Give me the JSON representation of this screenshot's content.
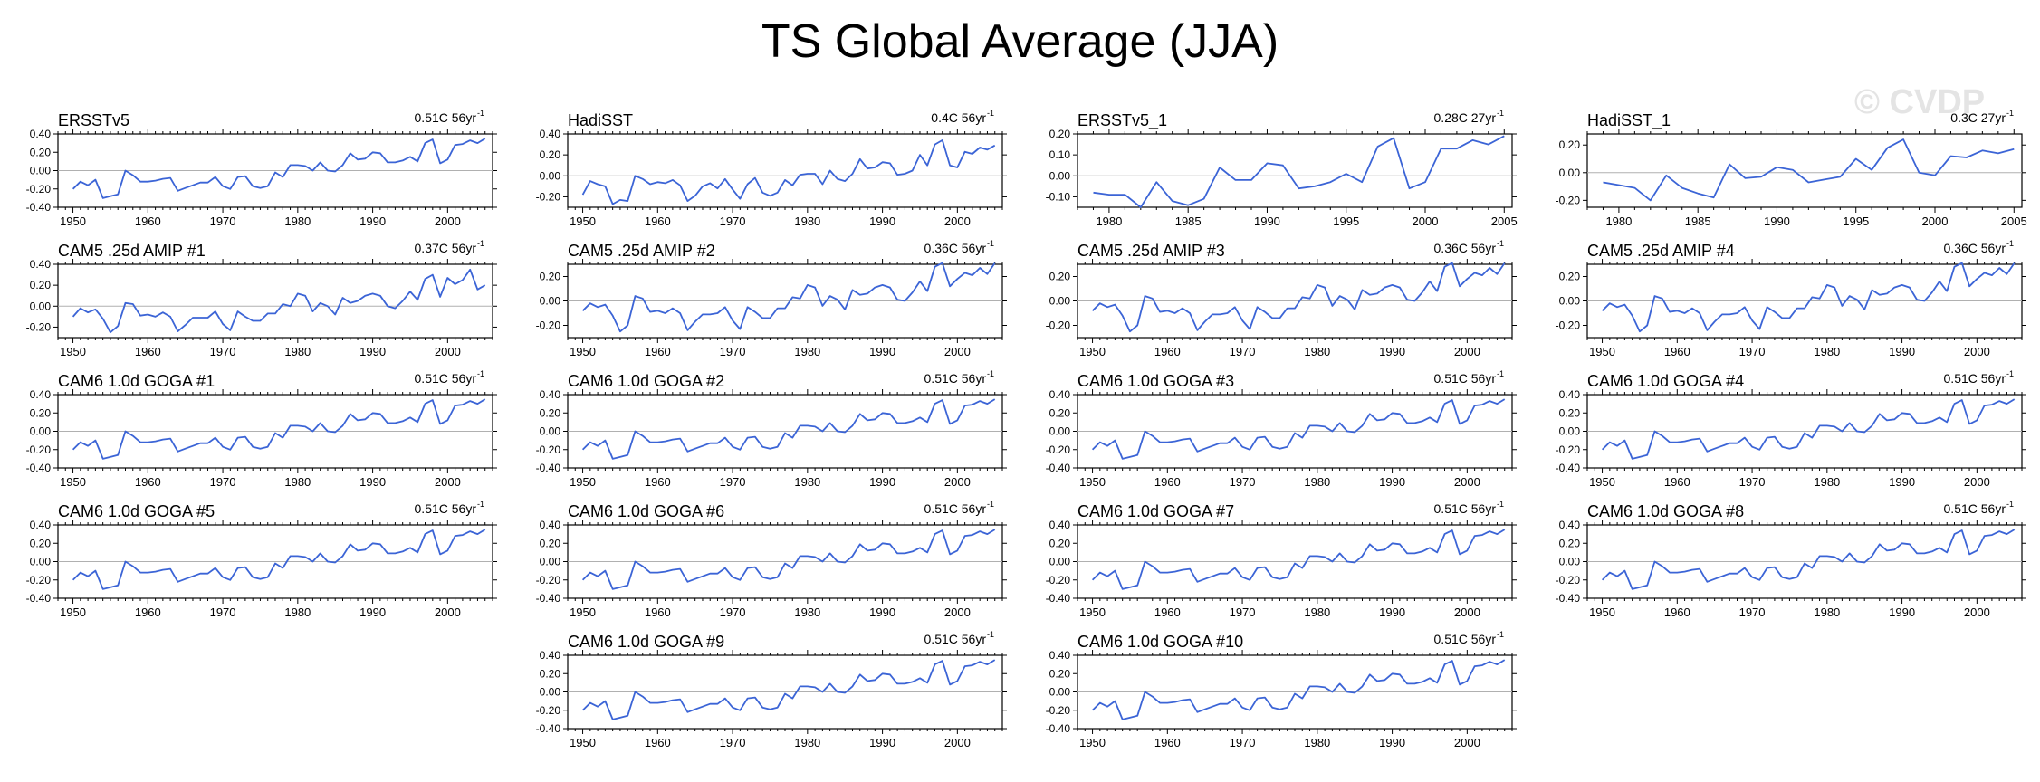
{
  "page_title": "TS Global Average (JJA)",
  "watermark": "© CVDP",
  "line_color": "#3b64d6",
  "zero_line_color": "#b0b0b0",
  "chart_data": [
    {
      "type": "line",
      "title": "ERSSTv5",
      "trend": "0.51C 56yr",
      "trend_sup": "-1",
      "xlim": [
        1948,
        2006
      ],
      "ylim": [
        -0.4,
        0.4
      ],
      "yticks": [
        "0.40",
        "0.20",
        "0.00",
        "-0.20",
        "-0.40"
      ],
      "xticks": [
        1950,
        1960,
        1970,
        1980,
        1990,
        2000
      ],
      "start": 1950,
      "series": "A"
    },
    {
      "type": "line",
      "title": "HadiSST",
      "trend": "0.4C 56yr",
      "trend_sup": "-1",
      "xlim": [
        1948,
        2006
      ],
      "ylim": [
        -0.3,
        0.4
      ],
      "yticks": [
        "0.40",
        "0.20",
        "0.00",
        "-0.20"
      ],
      "xticks": [
        1950,
        1960,
        1970,
        1980,
        1990,
        2000
      ],
      "start": 1950,
      "series": "B"
    },
    {
      "type": "line",
      "title": "ERSSTv5_1",
      "trend": "0.28C 27yr",
      "trend_sup": "-1",
      "xlim": [
        1978,
        2005.5
      ],
      "ylim": [
        -0.15,
        0.2
      ],
      "yticks": [
        "0.20",
        "0.10",
        "0.00",
        "-0.10"
      ],
      "xticks": [
        1980,
        1985,
        1990,
        1995,
        2000,
        2005
      ],
      "start": 1979,
      "series": "C"
    },
    {
      "type": "line",
      "title": "HadiSST_1",
      "trend": "0.3C 27yr",
      "trend_sup": "-1",
      "xlim": [
        1978,
        2005.5
      ],
      "ylim": [
        -0.25,
        0.28
      ],
      "yticks": [
        "0.20",
        "0.00",
        "-0.20"
      ],
      "xticks": [
        1980,
        1985,
        1990,
        1995,
        2000,
        2005
      ],
      "start": 1979,
      "series": "D"
    },
    {
      "type": "line",
      "title": "CAM5 .25d AMIP #1",
      "trend": "0.37C 56yr",
      "trend_sup": "-1",
      "xlim": [
        1948,
        2006
      ],
      "ylim": [
        -0.3,
        0.4
      ],
      "yticks": [
        "0.40",
        "0.20",
        "0.00",
        "-0.20"
      ],
      "xticks": [
        1950,
        1960,
        1970,
        1980,
        1990,
        2000
      ],
      "start": 1950,
      "series": "E"
    },
    {
      "type": "line",
      "title": "CAM5 .25d AMIP #2",
      "trend": "0.36C 56yr",
      "trend_sup": "-1",
      "xlim": [
        1948,
        2006
      ],
      "ylim": [
        -0.3,
        0.3
      ],
      "yticks": [
        "0.20",
        "0.00",
        "-0.20"
      ],
      "xticks": [
        1950,
        1960,
        1970,
        1980,
        1990,
        2000
      ],
      "start": 1950,
      "series": "F"
    },
    {
      "type": "line",
      "title": "CAM5 .25d AMIP #3",
      "trend": "0.36C 56yr",
      "trend_sup": "-1",
      "xlim": [
        1948,
        2006
      ],
      "ylim": [
        -0.3,
        0.3
      ],
      "yticks": [
        "0.20",
        "0.00",
        "-0.20"
      ],
      "xticks": [
        1950,
        1960,
        1970,
        1980,
        1990,
        2000
      ],
      "start": 1950,
      "series": "F"
    },
    {
      "type": "line",
      "title": "CAM5 .25d AMIP #4",
      "trend": "0.36C 56yr",
      "trend_sup": "-1",
      "xlim": [
        1948,
        2006
      ],
      "ylim": [
        -0.3,
        0.3
      ],
      "yticks": [
        "0.20",
        "0.00",
        "-0.20"
      ],
      "xticks": [
        1950,
        1960,
        1970,
        1980,
        1990,
        2000
      ],
      "start": 1950,
      "series": "F"
    },
    {
      "type": "line",
      "title": "CAM6 1.0d GOGA #1",
      "trend": "0.51C 56yr",
      "trend_sup": "-1",
      "xlim": [
        1948,
        2006
      ],
      "ylim": [
        -0.4,
        0.4
      ],
      "yticks": [
        "0.40",
        "0.20",
        "0.00",
        "-0.20",
        "-0.40"
      ],
      "xticks": [
        1950,
        1960,
        1970,
        1980,
        1990,
        2000
      ],
      "start": 1950,
      "series": "A"
    },
    {
      "type": "line",
      "title": "CAM6 1.0d GOGA #2",
      "trend": "0.51C 56yr",
      "trend_sup": "-1",
      "xlim": [
        1948,
        2006
      ],
      "ylim": [
        -0.4,
        0.4
      ],
      "yticks": [
        "0.40",
        "0.20",
        "0.00",
        "-0.20",
        "-0.40"
      ],
      "xticks": [
        1950,
        1960,
        1970,
        1980,
        1990,
        2000
      ],
      "start": 1950,
      "series": "A"
    },
    {
      "type": "line",
      "title": "CAM6 1.0d GOGA #3",
      "trend": "0.51C 56yr",
      "trend_sup": "-1",
      "xlim": [
        1948,
        2006
      ],
      "ylim": [
        -0.4,
        0.4
      ],
      "yticks": [
        "0.40",
        "0.20",
        "0.00",
        "-0.20",
        "-0.40"
      ],
      "xticks": [
        1950,
        1960,
        1970,
        1980,
        1990,
        2000
      ],
      "start": 1950,
      "series": "A"
    },
    {
      "type": "line",
      "title": "CAM6 1.0d GOGA #4",
      "trend": "0.51C 56yr",
      "trend_sup": "-1",
      "xlim": [
        1948,
        2006
      ],
      "ylim": [
        -0.4,
        0.4
      ],
      "yticks": [
        "0.40",
        "0.20",
        "0.00",
        "-0.20",
        "-0.40"
      ],
      "xticks": [
        1950,
        1960,
        1970,
        1980,
        1990,
        2000
      ],
      "start": 1950,
      "series": "A"
    },
    {
      "type": "line",
      "title": "CAM6 1.0d GOGA #5",
      "trend": "0.51C 56yr",
      "trend_sup": "-1",
      "xlim": [
        1948,
        2006
      ],
      "ylim": [
        -0.4,
        0.4
      ],
      "yticks": [
        "0.40",
        "0.20",
        "0.00",
        "-0.20",
        "-0.40"
      ],
      "xticks": [
        1950,
        1960,
        1970,
        1980,
        1990,
        2000
      ],
      "start": 1950,
      "series": "A"
    },
    {
      "type": "line",
      "title": "CAM6 1.0d GOGA #6",
      "trend": "0.51C 56yr",
      "trend_sup": "-1",
      "xlim": [
        1948,
        2006
      ],
      "ylim": [
        -0.4,
        0.4
      ],
      "yticks": [
        "0.40",
        "0.20",
        "0.00",
        "-0.20",
        "-0.40"
      ],
      "xticks": [
        1950,
        1960,
        1970,
        1980,
        1990,
        2000
      ],
      "start": 1950,
      "series": "A"
    },
    {
      "type": "line",
      "title": "CAM6 1.0d GOGA #7",
      "trend": "0.51C 56yr",
      "trend_sup": "-1",
      "xlim": [
        1948,
        2006
      ],
      "ylim": [
        -0.4,
        0.4
      ],
      "yticks": [
        "0.40",
        "0.20",
        "0.00",
        "-0.20",
        "-0.40"
      ],
      "xticks": [
        1950,
        1960,
        1970,
        1980,
        1990,
        2000
      ],
      "start": 1950,
      "series": "A"
    },
    {
      "type": "line",
      "title": "CAM6 1.0d GOGA #8",
      "trend": "0.51C 56yr",
      "trend_sup": "-1",
      "xlim": [
        1948,
        2006
      ],
      "ylim": [
        -0.4,
        0.4
      ],
      "yticks": [
        "0.40",
        "0.20",
        "0.00",
        "-0.20",
        "-0.40"
      ],
      "xticks": [
        1950,
        1960,
        1970,
        1980,
        1990,
        2000
      ],
      "start": 1950,
      "series": "A"
    },
    {
      "type": "line",
      "title": "CAM6 1.0d GOGA #9",
      "trend": "0.51C 56yr",
      "trend_sup": "-1",
      "xlim": [
        1948,
        2006
      ],
      "ylim": [
        -0.4,
        0.4
      ],
      "yticks": [
        "0.40",
        "0.20",
        "0.00",
        "-0.20",
        "-0.40"
      ],
      "xticks": [
        1950,
        1960,
        1970,
        1980,
        1990,
        2000
      ],
      "start": 1950,
      "series": "A"
    },
    {
      "type": "line",
      "title": "CAM6 1.0d GOGA #10",
      "trend": "0.51C 56yr",
      "trend_sup": "-1",
      "xlim": [
        1948,
        2006
      ],
      "ylim": [
        -0.4,
        0.4
      ],
      "yticks": [
        "0.40",
        "0.20",
        "0.00",
        "-0.20",
        "-0.40"
      ],
      "xticks": [
        1950,
        1960,
        1970,
        1980,
        1990,
        2000
      ],
      "start": 1950,
      "series": "A"
    }
  ],
  "series_values": {
    "A": [
      -0.2,
      -0.12,
      -0.16,
      -0.1,
      -0.3,
      -0.28,
      -0.26,
      0.0,
      -0.05,
      -0.12,
      -0.12,
      -0.11,
      -0.09,
      -0.08,
      -0.22,
      -0.19,
      -0.16,
      -0.13,
      -0.13,
      -0.07,
      -0.17,
      -0.2,
      -0.07,
      -0.06,
      -0.17,
      -0.19,
      -0.17,
      -0.02,
      -0.07,
      0.06,
      0.06,
      0.05,
      0.0,
      0.09,
      0.0,
      -0.01,
      0.06,
      0.19,
      0.12,
      0.13,
      0.2,
      0.19,
      0.09,
      0.09,
      0.11,
      0.15,
      0.1,
      0.3,
      0.34,
      0.08,
      0.12,
      0.28,
      0.29,
      0.33,
      0.3,
      0.35
    ],
    "B": [
      -0.18,
      -0.05,
      -0.08,
      -0.1,
      -0.27,
      -0.23,
      -0.24,
      0.0,
      -0.03,
      -0.08,
      -0.06,
      -0.07,
      -0.04,
      -0.09,
      -0.24,
      -0.19,
      -0.1,
      -0.07,
      -0.12,
      -0.03,
      -0.13,
      -0.22,
      -0.08,
      -0.02,
      -0.16,
      -0.19,
      -0.16,
      -0.04,
      -0.09,
      0.01,
      0.02,
      0.02,
      -0.08,
      0.05,
      -0.03,
      -0.05,
      0.02,
      0.16,
      0.07,
      0.08,
      0.13,
      0.12,
      0.01,
      0.02,
      0.05,
      0.2,
      0.1,
      0.3,
      0.34,
      0.1,
      0.08,
      0.23,
      0.21,
      0.27,
      0.25,
      0.29
    ],
    "C": [
      -0.08,
      -0.09,
      -0.09,
      -0.15,
      -0.03,
      -0.12,
      -0.14,
      -0.11,
      0.04,
      -0.02,
      -0.02,
      0.06,
      0.05,
      -0.06,
      -0.05,
      -0.03,
      0.01,
      -0.03,
      0.14,
      0.18,
      -0.06,
      -0.03,
      0.13,
      0.13,
      0.17,
      0.15,
      0.19
    ],
    "D": [
      -0.07,
      -0.09,
      -0.11,
      -0.2,
      -0.02,
      -0.11,
      -0.15,
      -0.18,
      0.06,
      -0.04,
      -0.03,
      0.04,
      0.02,
      -0.07,
      -0.05,
      -0.03,
      0.1,
      0.02,
      0.18,
      0.24,
      0.0,
      -0.02,
      0.12,
      0.11,
      0.16,
      0.14,
      0.17
    ],
    "E": [
      -0.1,
      -0.02,
      -0.06,
      -0.03,
      -0.12,
      -0.25,
      -0.19,
      0.03,
      0.02,
      -0.09,
      -0.08,
      -0.1,
      -0.06,
      -0.1,
      -0.24,
      -0.18,
      -0.11,
      -0.11,
      -0.11,
      -0.05,
      -0.17,
      -0.23,
      -0.05,
      -0.1,
      -0.14,
      -0.14,
      -0.07,
      -0.07,
      0.02,
      0.0,
      0.12,
      0.1,
      -0.05,
      0.03,
      0.0,
      -0.08,
      0.08,
      0.03,
      0.05,
      0.1,
      0.12,
      0.1,
      0.0,
      -0.02,
      0.05,
      0.14,
      0.06,
      0.26,
      0.3,
      0.09,
      0.27,
      0.21,
      0.25,
      0.35,
      0.16,
      0.2
    ],
    "F": [
      -0.08,
      -0.02,
      -0.05,
      -0.03,
      -0.12,
      -0.25,
      -0.2,
      0.04,
      0.02,
      -0.09,
      -0.08,
      -0.1,
      -0.06,
      -0.1,
      -0.24,
      -0.17,
      -0.11,
      -0.11,
      -0.1,
      -0.05,
      -0.16,
      -0.23,
      -0.05,
      -0.09,
      -0.14,
      -0.14,
      -0.06,
      -0.06,
      0.03,
      0.02,
      0.13,
      0.11,
      -0.04,
      0.04,
      0.01,
      -0.07,
      0.09,
      0.05,
      0.06,
      0.11,
      0.13,
      0.11,
      0.01,
      0.0,
      0.07,
      0.16,
      0.08,
      0.28,
      0.31,
      0.12,
      0.18,
      0.23,
      0.21,
      0.27,
      0.22,
      0.31
    ]
  }
}
